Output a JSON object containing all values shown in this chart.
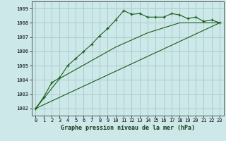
{
  "title": "Graphe pression niveau de la mer (hPa)",
  "background_color": "#cce8e8",
  "grid_color": "#aacccc",
  "line_color": "#1a5c1a",
  "marker_color": "#1a5c1a",
  "xlim": [
    -0.5,
    23.5
  ],
  "ylim": [
    1001.5,
    1009.5
  ],
  "xticks": [
    0,
    1,
    2,
    3,
    4,
    5,
    6,
    7,
    8,
    9,
    10,
    11,
    12,
    13,
    14,
    15,
    16,
    17,
    18,
    19,
    20,
    21,
    22,
    23
  ],
  "yticks": [
    1002,
    1003,
    1004,
    1005,
    1006,
    1007,
    1008,
    1009
  ],
  "series1_x": [
    0,
    1,
    2,
    3,
    4,
    5,
    6,
    7,
    8,
    9,
    10,
    11,
    12,
    13,
    14,
    15,
    16,
    17,
    18,
    19,
    20,
    21,
    22,
    23
  ],
  "series1_y": [
    1002.0,
    1002.8,
    1003.8,
    1004.15,
    1005.0,
    1005.5,
    1006.0,
    1006.5,
    1007.1,
    1007.6,
    1008.2,
    1008.85,
    1008.6,
    1008.65,
    1008.4,
    1008.4,
    1008.4,
    1008.65,
    1008.55,
    1008.3,
    1008.4,
    1008.1,
    1008.2,
    1008.0
  ],
  "series2_x": [
    0,
    23
  ],
  "series2_y": [
    1002.0,
    1008.0
  ],
  "series3_x": [
    0,
    3,
    10,
    14,
    18,
    23
  ],
  "series3_y": [
    1002.0,
    1004.1,
    1006.3,
    1007.3,
    1008.0,
    1008.0
  ],
  "ylabel_fontsize": 5,
  "xlabel_fontsize": 6,
  "tick_fontsize": 5
}
